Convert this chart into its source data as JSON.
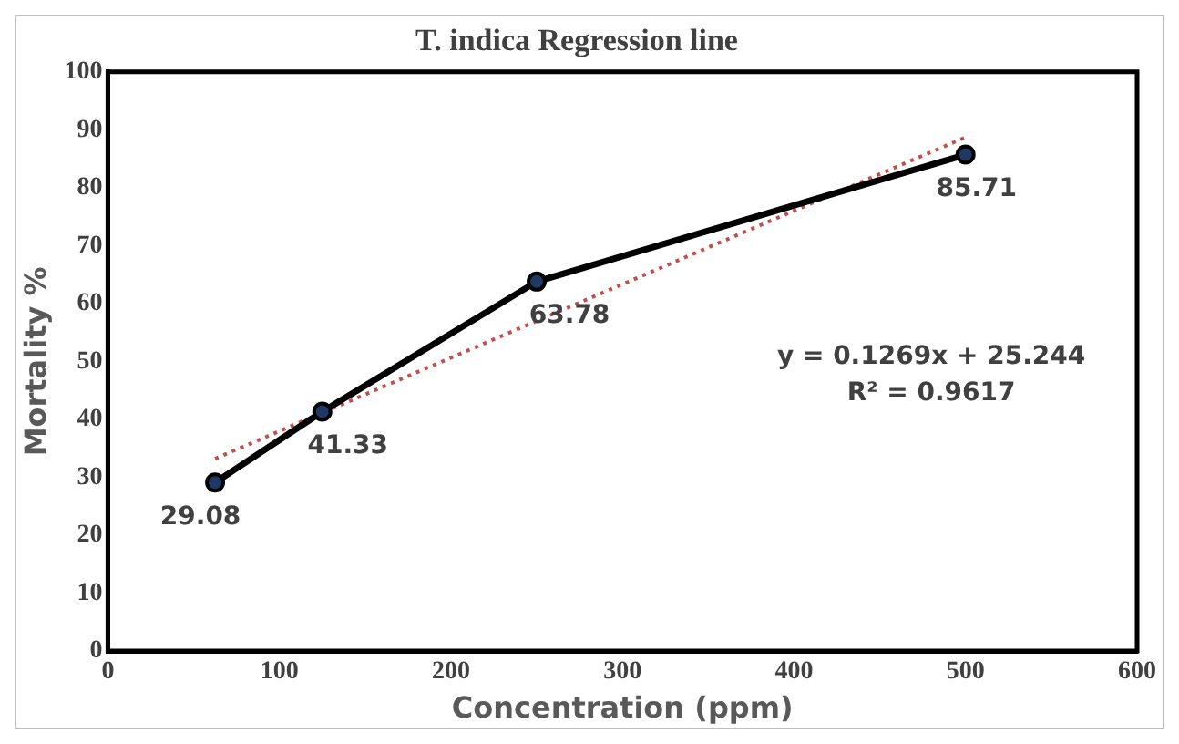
{
  "chart_data": {
    "type": "line",
    "title": "T. indica Regression line",
    "xlabel": "Concentration (ppm)",
    "ylabel": "Mortality %",
    "series": [
      {
        "color": "#000000",
        "x": [
          62.5,
          125,
          250,
          500
        ],
        "values": [
          29.08,
          41.33,
          63.78,
          85.71
        ],
        "value_labels": [
          "29.08",
          "41.33",
          "63.78",
          "85.71"
        ],
        "marker": "circle",
        "line_style": "solid"
      },
      {
        "color": "#c0504d",
        "x": [
          62.5,
          500
        ],
        "values": [
          33.2,
          88.7
        ],
        "marker": "none",
        "line_style": "dotted"
      }
    ],
    "xlim": [
      0,
      600
    ],
    "xticks": [
      0,
      100,
      200,
      300,
      400,
      500,
      600
    ],
    "ylim": [
      0,
      100
    ],
    "yticks": [
      0,
      10,
      20,
      30,
      40,
      50,
      60,
      70,
      80,
      90,
      100
    ],
    "grid": false,
    "legend": false,
    "annotations": [
      "y = 0.1269x + 25.244",
      "R² = 0.9617"
    ]
  }
}
